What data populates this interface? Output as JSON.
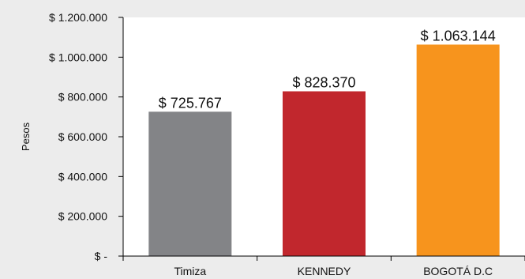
{
  "chart_data": {
    "type": "bar",
    "title": "",
    "xlabel": "",
    "ylabel": "Pesos",
    "categories": [
      "Timiza",
      "KENNEDY",
      "BOGOTÁ D.C"
    ],
    "values": [
      725767,
      828370,
      1063144
    ],
    "data_labels": [
      "$ 725.767",
      "$ 828.370",
      "$ 1.063.144"
    ],
    "ylim": [
      0,
      1200000
    ],
    "yticks": [
      0,
      200000,
      400000,
      600000,
      800000,
      1000000,
      1200000
    ],
    "ytick_labels": [
      "$ -",
      "$ 200.000",
      "$ 400.000",
      "$ 600.000",
      "$ 800.000",
      "$ 1.000.000",
      "$ 1.200.000"
    ],
    "bar_colors": [
      "#838487",
      "#c1272d",
      "#f7941d"
    ],
    "grid": false,
    "legend": "none"
  }
}
